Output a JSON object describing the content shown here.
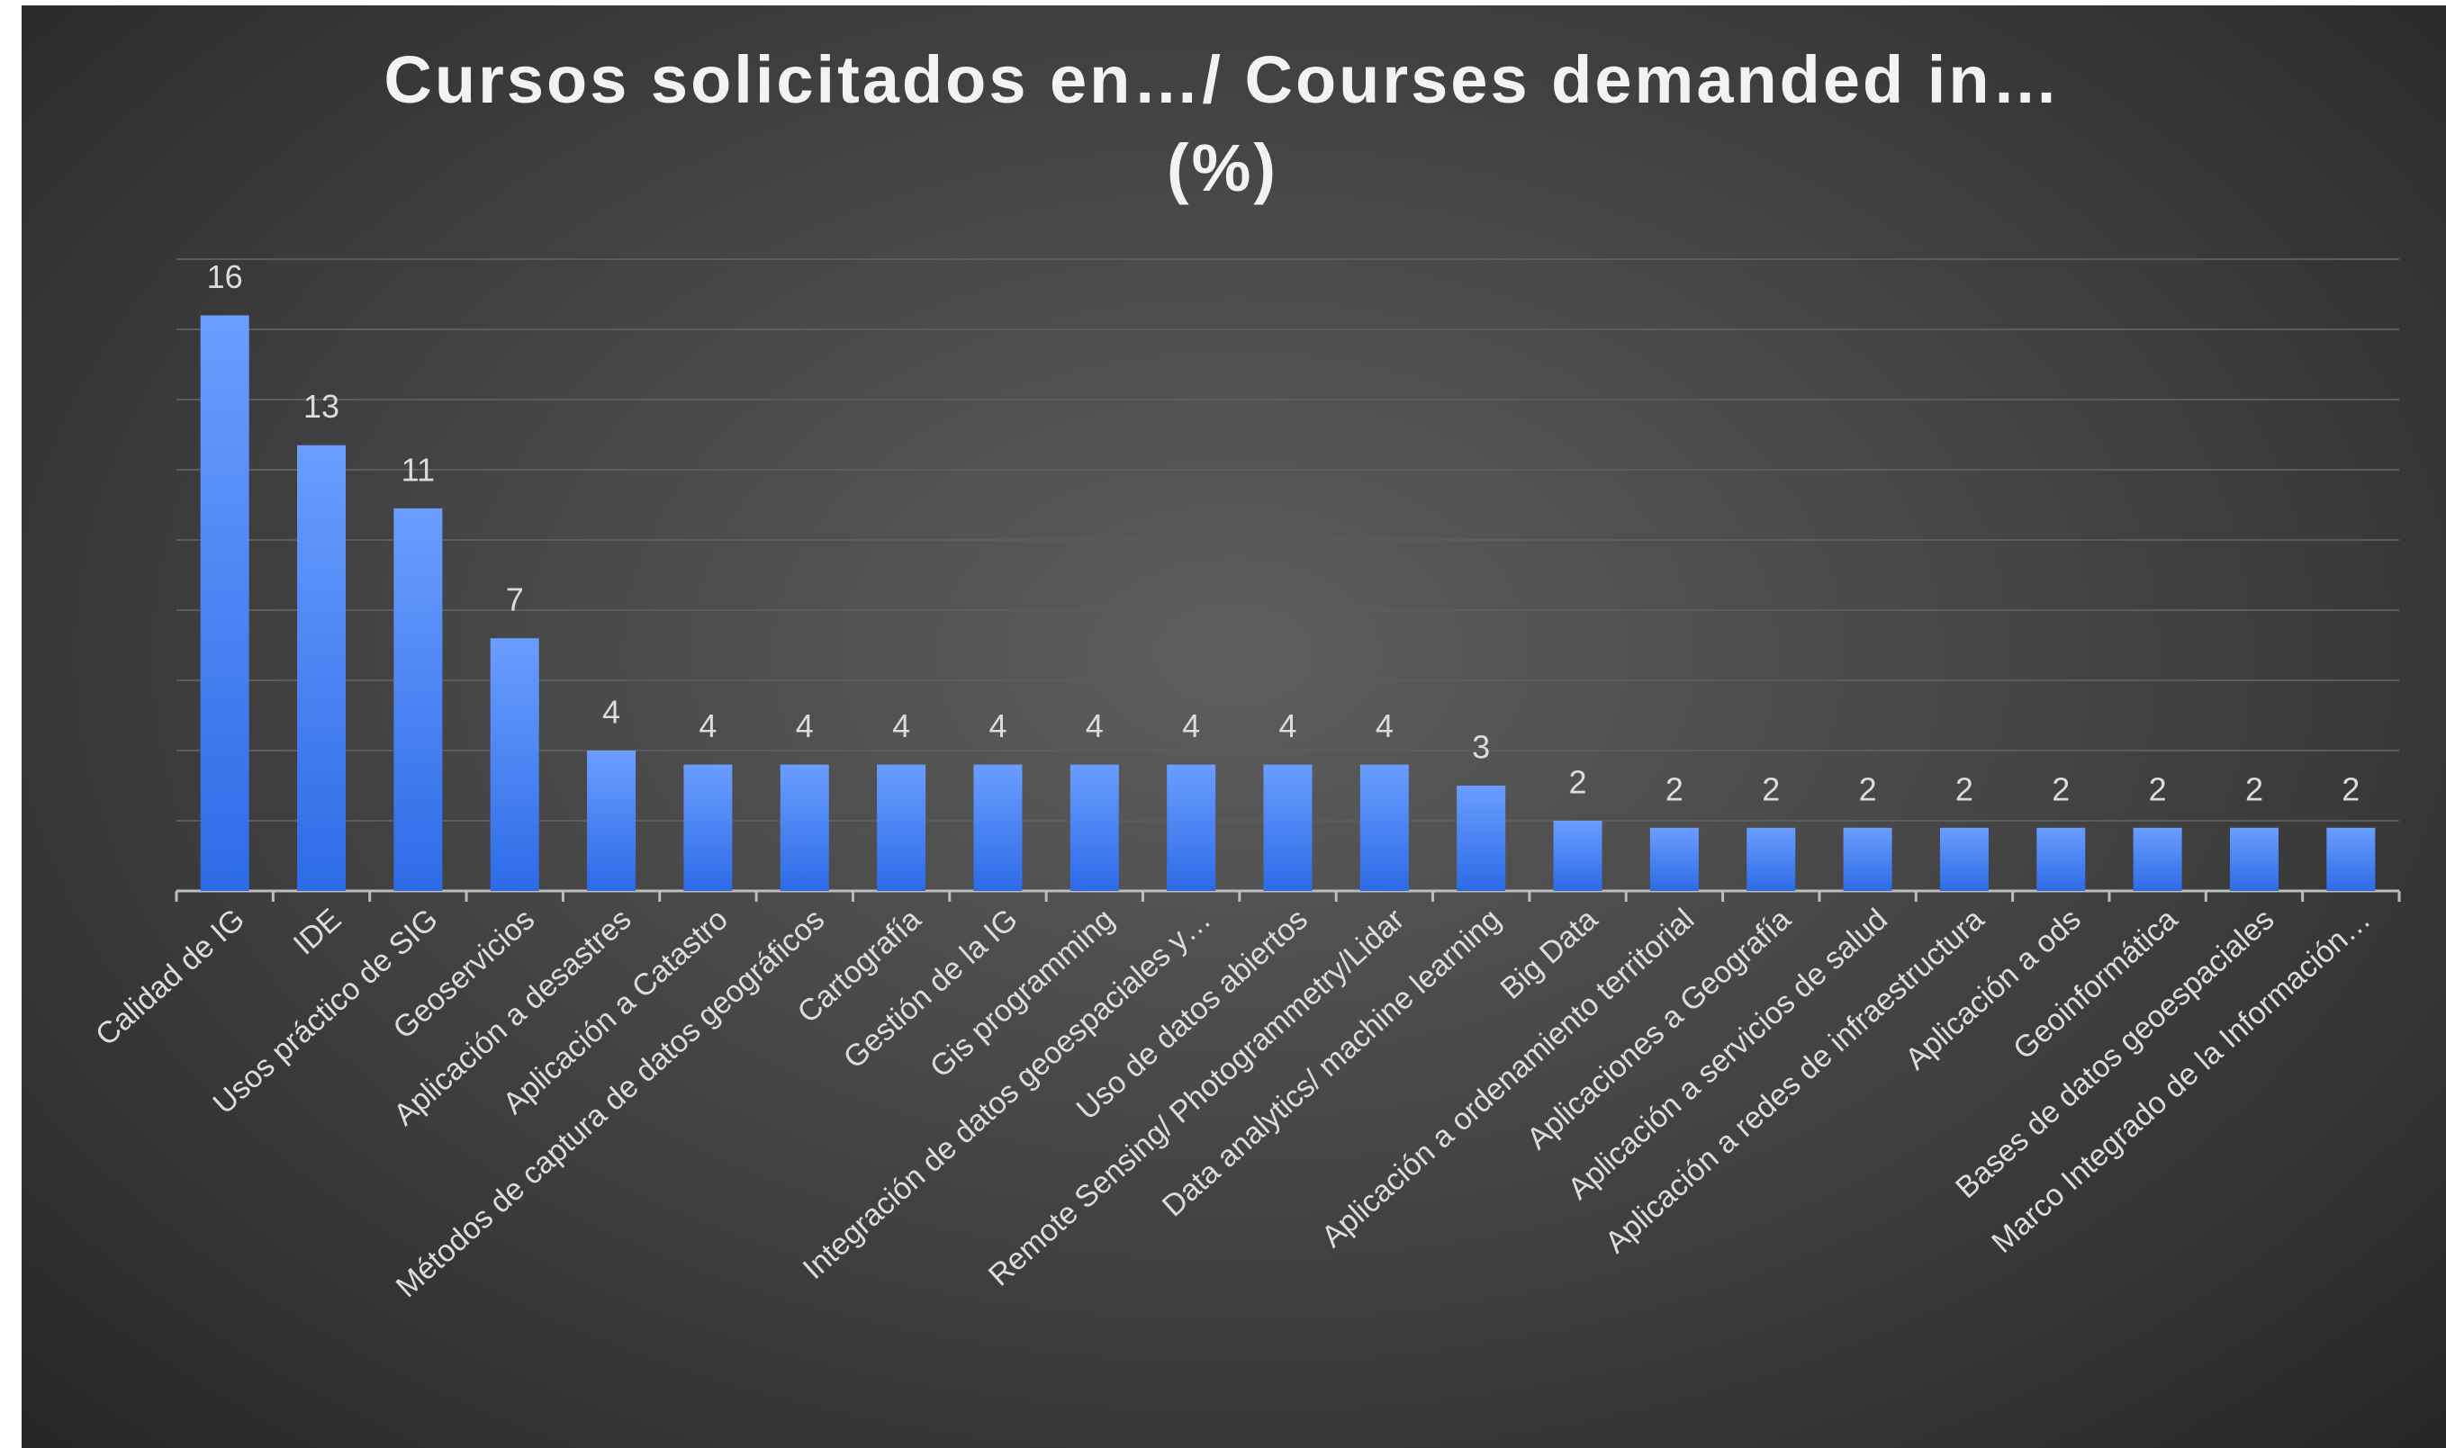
{
  "chart_data": {
    "type": "bar",
    "title": "Cursos solicitados en…/ Courses demanded in…  (%)",
    "categories": [
      "Calidad de IG",
      "IDE",
      "Usos práctico de SIG",
      "Geoservicios",
      "Aplicación a desastres",
      "Aplicación a  Catastro",
      "Métodos de captura de datos geográficos",
      "Cartografía",
      "Gestión de la IG",
      "Gis programming",
      "Integración de datos geoespaciales y…",
      "Uso de datos abiertos",
      "Remote Sensing/ Photogrammetry/Lidar",
      "Data analytics/ machine learning",
      "Big Data",
      "Aplicación a ordenamiento territorial",
      "Aplicaciones a Geografía",
      "Aplicación a servicios de salud",
      "Aplicación a redes de infraestructura",
      "Aplicación a ods",
      "Geoinformática",
      "Bases de datos geoespaciales",
      "Marco Integrado de la Información…"
    ],
    "values": [
      16.4,
      12.7,
      10.9,
      7.2,
      4.0,
      3.6,
      3.6,
      3.6,
      3.6,
      3.6,
      3.6,
      3.6,
      3.6,
      3.0,
      2.0,
      1.8,
      1.8,
      1.8,
      1.8,
      1.8,
      1.8,
      1.8,
      1.8
    ],
    "value_labels": [
      "16",
      "13",
      "11",
      "7",
      "4",
      "4",
      "4",
      "4",
      "4",
      "4",
      "4",
      "4",
      "4",
      "3",
      "2",
      "2",
      "2",
      "2",
      "2",
      "2",
      "2",
      "2",
      "2"
    ],
    "color": "#4a86f5",
    "ylim": [
      0,
      18
    ],
    "yticks": [
      0,
      2,
      4,
      6,
      8,
      10,
      12,
      14,
      16,
      18
    ],
    "grid": true
  }
}
